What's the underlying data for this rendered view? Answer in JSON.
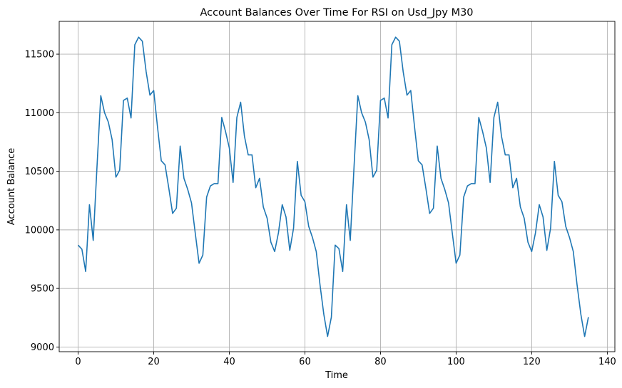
{
  "chart_data": {
    "type": "line",
    "title": "Account Balances Over Time For RSI on Usd_Jpy M30",
    "xlabel": "Time",
    "ylabel": "Account Balance",
    "xlim": [
      -5,
      142
    ],
    "ylim": [
      8960,
      11780
    ],
    "xticks": [
      0,
      20,
      40,
      60,
      80,
      100,
      120,
      140
    ],
    "yticks": [
      9000,
      9500,
      10000,
      10500,
      11000,
      11500
    ],
    "grid": true,
    "series": [
      {
        "color": "#1f77b4",
        "x": [
          0,
          1,
          2,
          3,
          4,
          5,
          6,
          7,
          8,
          9,
          10,
          11,
          12,
          13,
          14,
          15,
          16,
          17,
          18,
          19,
          20,
          21,
          22,
          23,
          24,
          25,
          26,
          27,
          28,
          29,
          30,
          31,
          32,
          33,
          34,
          35,
          36,
          37,
          38,
          39,
          40,
          41,
          42,
          43,
          44,
          45,
          46,
          47,
          48,
          49,
          50,
          51,
          52,
          53,
          54,
          55,
          56,
          57,
          58,
          59,
          60,
          61,
          62,
          63,
          64,
          65,
          66,
          67,
          68,
          69,
          70,
          71,
          72,
          73,
          74,
          75,
          76,
          77,
          78,
          79,
          80,
          81,
          82,
          83,
          84,
          85,
          86,
          87,
          88,
          89,
          90,
          91,
          92,
          93,
          94,
          95,
          96,
          97,
          98,
          99,
          100,
          101,
          102,
          103,
          104,
          105,
          106,
          107,
          108,
          109,
          110,
          111,
          112,
          113,
          114,
          115,
          116,
          117,
          118,
          119,
          120,
          121,
          122,
          123,
          124,
          125,
          126,
          127,
          128,
          129,
          130,
          131,
          132,
          133,
          134,
          135
        ],
        "values": [
          9870,
          9835,
          9645,
          10215,
          9910,
          10540,
          11145,
          11000,
          10920,
          10770,
          10450,
          10510,
          11105,
          11125,
          10955,
          11580,
          11645,
          11610,
          11350,
          11150,
          11190,
          10880,
          10590,
          10555,
          10355,
          10140,
          10185,
          10715,
          10440,
          10345,
          10230,
          9970,
          9715,
          9785,
          10280,
          10375,
          10395,
          10395,
          10960,
          10840,
          10700,
          10405,
          10960,
          11090,
          10800,
          10640,
          10640,
          10360,
          10440,
          10195,
          10100,
          9895,
          9815,
          9975,
          10215,
          10110,
          9825,
          10015,
          10585,
          10295,
          10240,
          10030,
          9935,
          9815,
          9530,
          9280,
          9090,
          9255,
          9870,
          9840,
          9645,
          10215,
          9910,
          10540,
          11145,
          11000,
          10920,
          10770,
          10450,
          10510,
          11105,
          11125,
          10955,
          11580,
          11645,
          11610,
          11350,
          11150,
          11190,
          10880,
          10590,
          10555,
          10355,
          10140,
          10185,
          10715,
          10440,
          10345,
          10230,
          9970,
          9715,
          9785,
          10280,
          10375,
          10395,
          10395,
          10960,
          10840,
          10700,
          10405,
          10960,
          11090,
          10800,
          10640,
          10640,
          10360,
          10440,
          10195,
          10100,
          9895,
          9815,
          9975,
          10215,
          10110,
          9825,
          10015,
          10585,
          10295,
          10240,
          10030,
          9935,
          9815,
          9530,
          9280,
          9090,
          9255
        ]
      }
    ]
  }
}
